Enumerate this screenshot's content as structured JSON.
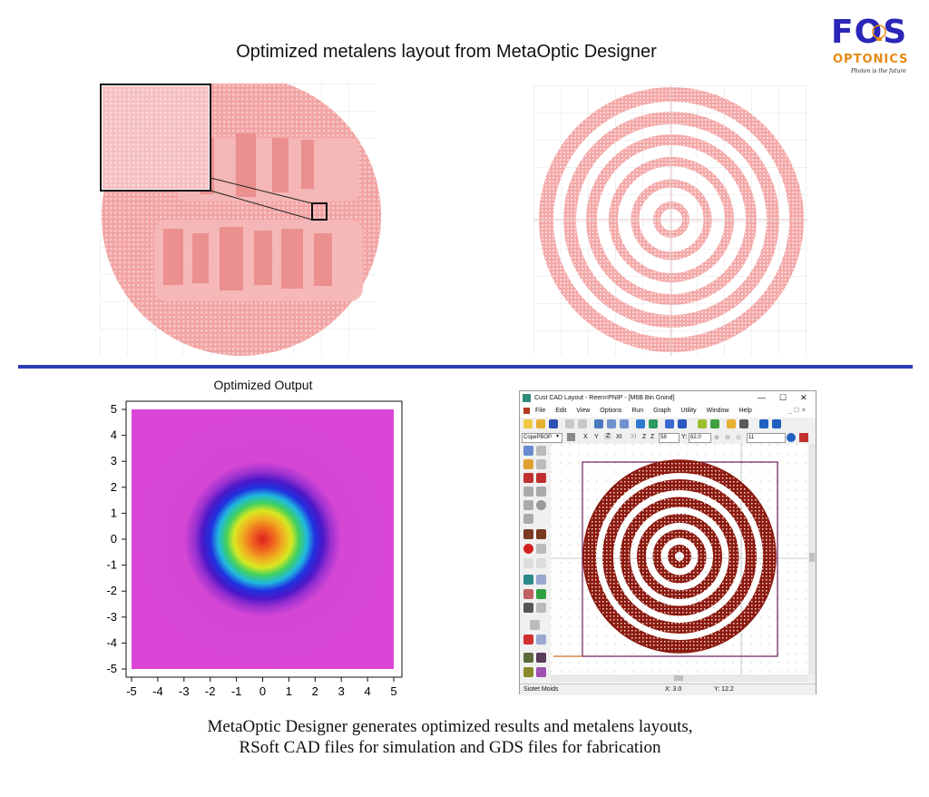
{
  "header": {
    "title": "Optimized metalens layout from MetaOptic Designer",
    "logo": {
      "name": "FOS",
      "subname": "OPTONICS",
      "tagline": "Photon is the future",
      "primary_color": "#2a26b8",
      "accent_color": "#e68a12"
    }
  },
  "divider_color": "#2f3ab5",
  "layout_images": {
    "left_label": "",
    "right_label": "",
    "color": "#f4a8a8"
  },
  "plot": {
    "title": "Optimized Output",
    "x_ticks": [
      "-5",
      "-4",
      "-3",
      "-2",
      "-1",
      "0",
      "1",
      "2",
      "3",
      "4",
      "5"
    ],
    "y_ticks": [
      "5",
      "4",
      "3",
      "2",
      "1",
      "0",
      "-1",
      "-2",
      "-3",
      "-4",
      "-5"
    ],
    "background_color": "#d946d6"
  },
  "chart_data": {
    "type": "heatmap",
    "title": "Optimized Output",
    "xlim": [
      -5,
      5
    ],
    "ylim": [
      -5,
      5
    ],
    "xticks": [
      -5,
      -4,
      -3,
      -2,
      -1,
      0,
      1,
      2,
      3,
      4,
      5
    ],
    "yticks": [
      -5,
      -4,
      -3,
      -2,
      -1,
      0,
      1,
      2,
      3,
      4,
      5
    ],
    "peak_center": [
      0,
      0
    ],
    "colormap": [
      "#e02020",
      "#f0a020",
      "#d8e820",
      "#30d050",
      "#20b0e0",
      "#2020e0",
      "#d946d6"
    ],
    "grid": false
  },
  "cad": {
    "window_title": "Cust CAD Layout - Reen=PNIP - [M6B Bin Gnind]",
    "window_controls": [
      "—",
      "☐",
      "✕"
    ],
    "menu": [
      "File",
      "Edit",
      "View",
      "Options",
      "Run",
      "Graph",
      "Utility",
      "Window",
      "Help"
    ],
    "toolbar2": {
      "combo_value": "CopePBOP",
      "axis_buttons": [
        "X",
        "Y",
        "Z",
        "XI",
        "XI",
        "Z",
        "Z"
      ],
      "x_value": "58",
      "y_label": "Y:",
      "y_value": "62.0",
      "zoom_value": "11"
    },
    "status": {
      "left": "Siotet Moids",
      "x": "X: 3.0",
      "y": "Y: 12.2"
    },
    "layout_color": "#8b1a10"
  },
  "caption": {
    "line1": "MetaOptic Designer generates optimized results and metalens layouts,",
    "line2": "RSoft CAD files for simulation and GDS files for fabrication"
  }
}
